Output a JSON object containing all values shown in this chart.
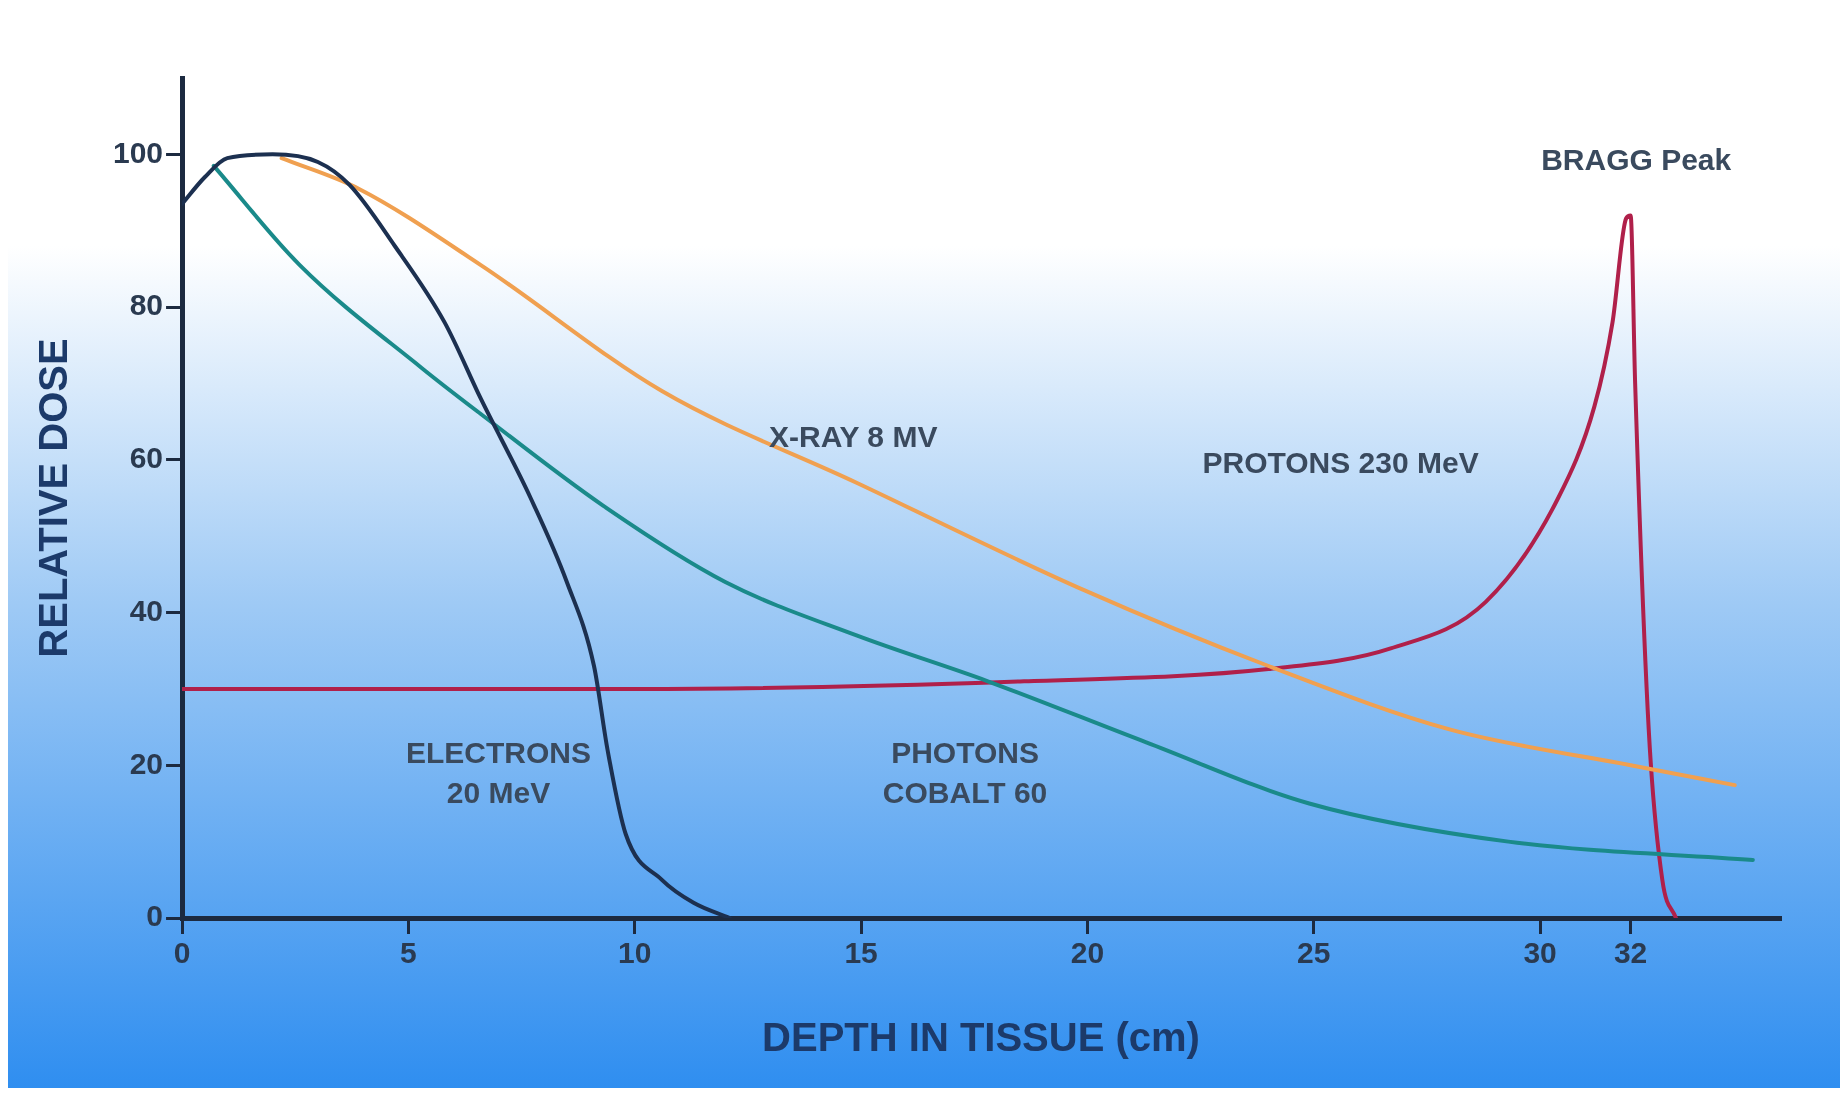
{
  "chart_data": {
    "type": "line",
    "xlabel": "DEPTH IN TISSUE (cm)",
    "ylabel": "RELATIVE DOSE",
    "xlim": [
      0,
      35.3
    ],
    "ylim": [
      0,
      110
    ],
    "xticks": [
      0,
      5,
      10,
      15,
      20,
      25,
      30,
      32
    ],
    "yticks": [
      0,
      20,
      40,
      60,
      80,
      100
    ],
    "grid": false,
    "legend": false,
    "marker": "none",
    "line_style": "solid",
    "series": [
      {
        "name": "ELECTRONS\n20 MeV",
        "color": "#1c3050",
        "x": [
          0,
          0.5,
          1,
          2,
          3,
          3.7,
          4.7,
          5.8,
          6.6,
          7.7,
          8.5,
          9.1,
          9.4,
          9.8,
          10.6,
          11.3,
          12.1
        ],
        "values": [
          93.5,
          97,
          99.5,
          100,
          99,
          96,
          88,
          78,
          68,
          55,
          44,
          33,
          22,
          11,
          5,
          2,
          0
        ]
      },
      {
        "name": "PHOTONS\nCOBALT 60",
        "color": "#1a8a8a",
        "x": [
          0.7,
          2.6,
          5.3,
          6.6,
          9.3,
          12,
          14.9,
          17.8,
          21.3,
          24.9,
          29.3,
          34.7
        ],
        "values": [
          98.5,
          85.5,
          72,
          66,
          54,
          44,
          37,
          31,
          23,
          15,
          10,
          7.6
        ]
      },
      {
        "name": "X-RAY 8 MV",
        "color": "#f0a050",
        "x": [
          2.2,
          3.9,
          6.6,
          10.6,
          14.9,
          19.9,
          24,
          28,
          32,
          34.3
        ],
        "values": [
          99.5,
          95.5,
          85.5,
          69,
          57,
          43,
          33,
          24.7,
          20,
          17.4
        ]
      },
      {
        "name": "PROTONS 230 MeV",
        "color": "#b0204a",
        "x": [
          0,
          10,
          18.6,
          24,
          26.7,
          28.8,
          30.4,
          31.2,
          31.6,
          31.9,
          32,
          32.1,
          32.4,
          32.7,
          33
        ],
        "values": [
          30,
          30,
          31,
          32.6,
          35.3,
          41.4,
          55,
          67,
          78,
          91.6,
          92,
          70,
          24.7,
          5,
          0
        ]
      }
    ],
    "annotations": [
      "BRAGG Peak"
    ]
  }
}
